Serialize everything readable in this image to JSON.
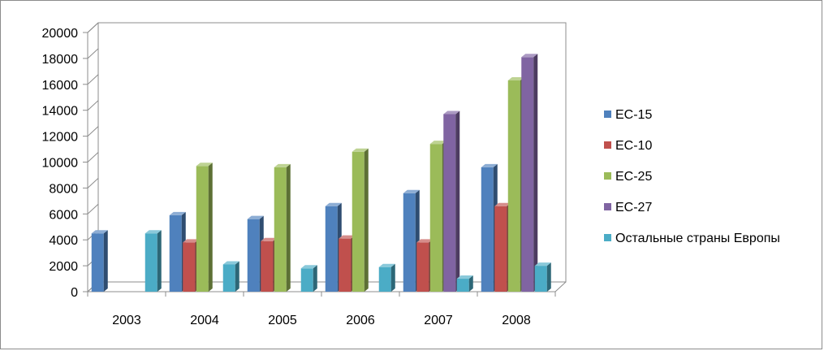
{
  "chart_data": {
    "type": "bar",
    "categories": [
      "2003",
      "2004",
      "2005",
      "2006",
      "2007",
      "2008"
    ],
    "series": [
      {
        "name": "ЕС-15",
        "color": "#4F81BD",
        "values": [
          4500,
          5900,
          5600,
          6600,
          7600,
          9600
        ]
      },
      {
        "name": "ЕС-10",
        "color": "#C0504D",
        "values": [
          null,
          3800,
          3900,
          4100,
          3800,
          6600
        ]
      },
      {
        "name": "ЕС-25",
        "color": "#9BBB59",
        "values": [
          null,
          9700,
          9600,
          10800,
          11400,
          16300
        ]
      },
      {
        "name": "ЕС-27",
        "color": "#8064A2",
        "values": [
          null,
          null,
          null,
          null,
          13700,
          18100
        ]
      },
      {
        "name": "Остальные страны Европы",
        "color": "#4BACC6",
        "values": [
          4500,
          2100,
          1800,
          1900,
          1000,
          2000
        ]
      }
    ],
    "ylim": [
      0,
      20000
    ],
    "yticks": [
      0,
      2000,
      4000,
      6000,
      8000,
      10000,
      12000,
      14000,
      16000,
      18000,
      20000
    ],
    "grid": false,
    "legend_position": "right",
    "style": "3d-clustered-column"
  }
}
